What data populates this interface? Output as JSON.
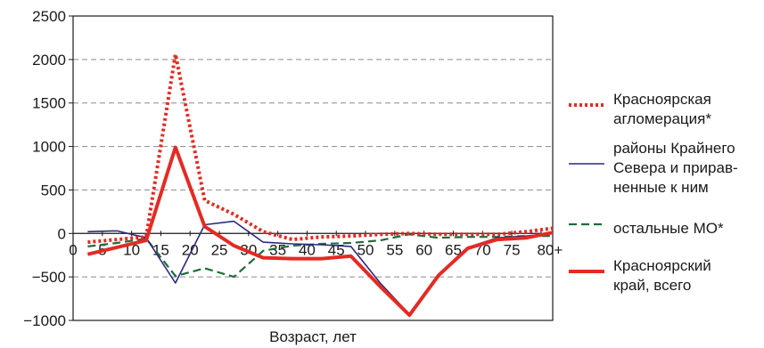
{
  "chart_data": {
    "type": "line",
    "xlabel": "Возраст, лет",
    "ylabel": "",
    "ylim": [
      -1000,
      2500
    ],
    "yticks": [
      -1000,
      -500,
      0,
      500,
      1000,
      1500,
      2000,
      2500
    ],
    "xlim": [
      0,
      82
    ],
    "xticks": [
      {
        "value": 0,
        "label": "0"
      },
      {
        "value": 5,
        "label": "5"
      },
      {
        "value": 10,
        "label": "10"
      },
      {
        "value": 15,
        "label": "15"
      },
      {
        "value": 20,
        "label": "20"
      },
      {
        "value": 25,
        "label": "25"
      },
      {
        "value": 30,
        "label": "30"
      },
      {
        "value": 35,
        "label": "35"
      },
      {
        "value": 40,
        "label": "40"
      },
      {
        "value": 45,
        "label": "45"
      },
      {
        "value": 50,
        "label": "50"
      },
      {
        "value": 55,
        "label": "55"
      },
      {
        "value": 60,
        "label": "60"
      },
      {
        "value": 65,
        "label": "65"
      },
      {
        "value": 70,
        "label": "70"
      },
      {
        "value": 75,
        "label": "75"
      },
      {
        "value": 80,
        "label": "80+"
      }
    ],
    "grid": "horizontal dashed",
    "legend_position": "right",
    "x": [
      2.5,
      7.5,
      12.5,
      17.5,
      22.5,
      27.5,
      32.5,
      37.5,
      42.5,
      47.5,
      52.5,
      57.5,
      62.5,
      67.5,
      72.5,
      77.5,
      82
    ],
    "series": [
      {
        "name": "Красноярская агломерация*",
        "legend_lines": [
          "Красноярская",
          "агломерация*"
        ],
        "color": "#e32b24",
        "style": "dotted",
        "values": [
          -100,
          -70,
          -40,
          2060,
          380,
          220,
          20,
          -70,
          -40,
          -30,
          -10,
          0,
          -10,
          -10,
          -10,
          20,
          60
        ]
      },
      {
        "name": "районы Крайнего Севера и приравненные к ним",
        "legend_lines": [
          "районы Крайнего",
          "Севера и прирав-",
          "ненные к ним"
        ],
        "color": "#2a2a7a",
        "style": "solid-thin",
        "values": [
          20,
          30,
          -50,
          -570,
          100,
          140,
          -100,
          -120,
          -130,
          -150,
          -570,
          -930,
          -490,
          -160,
          -50,
          -30,
          0
        ]
      },
      {
        "name": "остальные МО*",
        "legend_lines": [
          "остальные МО*"
        ],
        "color": "#1f6b3a",
        "style": "dashed",
        "values": [
          -150,
          -110,
          -60,
          -490,
          -400,
          -500,
          -200,
          -140,
          -120,
          -110,
          -80,
          -10,
          -50,
          -40,
          -40,
          -30,
          -30
        ]
      },
      {
        "name": "Красноярский край, всего",
        "legend_lines": [
          "Красноярский",
          "край, всего"
        ],
        "color": "#e32b24",
        "style": "solid-thick",
        "values": [
          -240,
          -160,
          -80,
          990,
          80,
          -140,
          -280,
          -290,
          -290,
          -260,
          -610,
          -940,
          -480,
          -170,
          -70,
          -50,
          10
        ]
      }
    ]
  }
}
